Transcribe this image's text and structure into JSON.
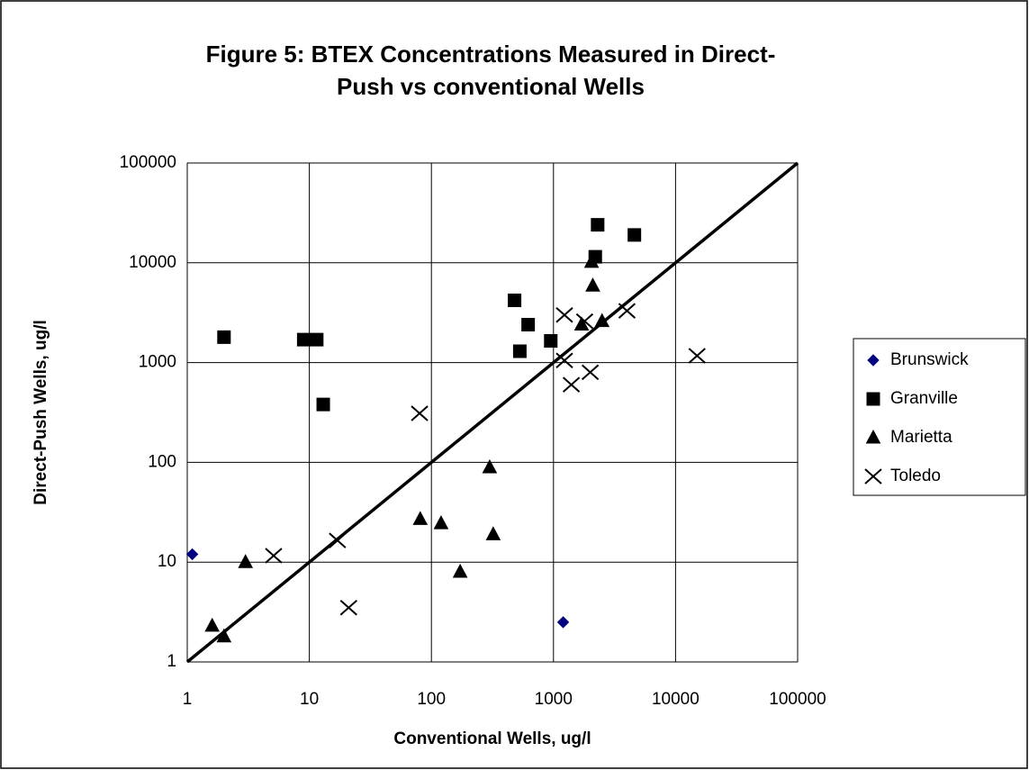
{
  "chart_data": {
    "type": "scatter",
    "title": [
      "Figure 5: BTEX Concentrations Measured in Direct-",
      "Push vs conventional Wells"
    ],
    "x_label": "Conventional Wells, ug/l",
    "y_label": "Direct-Push Wells, ug/l",
    "xscale": "log",
    "yscale": "log",
    "xlim": [
      1,
      100000
    ],
    "ylim": [
      1,
      100000
    ],
    "xticks": [
      1,
      10,
      100,
      1000,
      10000,
      100000
    ],
    "yticks": [
      1,
      10,
      100,
      1000,
      10000,
      100000
    ],
    "grid": true,
    "legend": "right",
    "series": [
      {
        "name": "Brunswick",
        "color": "#000080",
        "marker": "diamond",
        "x": [
          1.1,
          1200
        ],
        "values": [
          12,
          2.5
        ]
      },
      {
        "name": "Granville",
        "color": "#000000",
        "marker": "square",
        "x": [
          2,
          9,
          11.5,
          13,
          480,
          530,
          620,
          950,
          2300,
          2200,
          4600
        ],
        "values": [
          1800,
          1700,
          1700,
          380,
          4200,
          1300,
          2400,
          1650,
          24000,
          11500,
          19000
        ]
      },
      {
        "name": "Marietta",
        "color": "#000000",
        "marker": "triangle",
        "x": [
          1.6,
          2,
          3,
          81,
          120,
          172,
          300,
          321,
          2050,
          2100,
          1700,
          2500
        ],
        "values": [
          2.3,
          1.8,
          10,
          27,
          24.5,
          8,
          89,
          19,
          10200,
          5900,
          2400,
          2600
        ]
      },
      {
        "name": "Toledo",
        "color": "#000000",
        "marker": "x",
        "x": [
          5.1,
          17,
          21,
          80,
          1230,
          1230,
          1400,
          2000,
          1800,
          4000,
          15000
        ],
        "values": [
          11.6,
          16.5,
          3.5,
          310,
          3000,
          1050,
          600,
          800,
          2600,
          3300,
          1170
        ]
      }
    ],
    "reference_line": {
      "color": "#000000",
      "x": [
        1,
        100000
      ],
      "values": [
        1,
        100000
      ]
    }
  }
}
